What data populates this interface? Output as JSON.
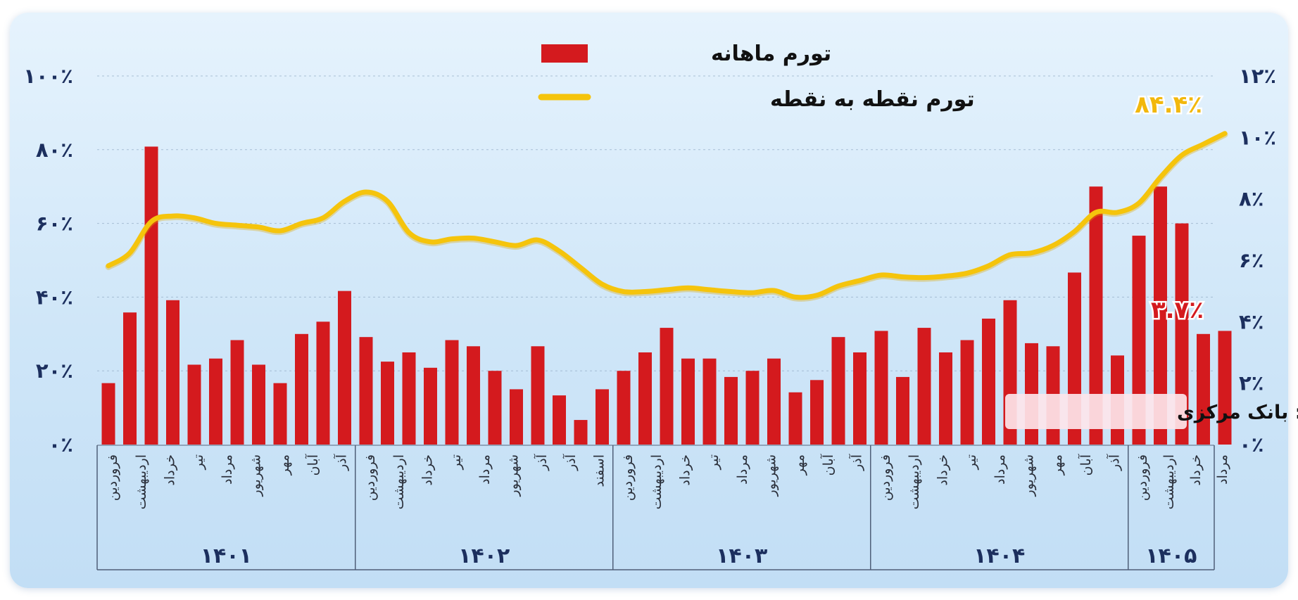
{
  "chart_data": {
    "type": "bar+line",
    "legend": {
      "placement": "top-center",
      "bar_series_name": "تورم ماهانه",
      "line_series_name": "تورم نقطه به نقطه"
    },
    "left_axis": {
      "series": "line",
      "range": [
        0,
        100
      ],
      "tick_labels": [
        "۰٪",
        "۲۰٪",
        "۴۰٪",
        "۶۰٪",
        "۸۰٪",
        "۱۰۰٪"
      ]
    },
    "right_axis": {
      "series": "bars",
      "range": [
        0,
        12
      ],
      "tick_labels": [
        "۰٪",
        "۲٪",
        "۴٪",
        "۶٪",
        "۸٪",
        "۱۰٪",
        "۱۲٪"
      ]
    },
    "grid": true,
    "years": [
      {
        "label": "۱۴۰۱",
        "months": [
          "فروردین",
          "اردیبهشت",
          "خرداد",
          "تیر",
          "مرداد",
          "شهریور",
          "مهر",
          "آبان",
          "آذر"
        ]
      },
      {
        "label": "۱۴۰۲",
        "months": [
          "فروردین",
          "اردیبهشت",
          "خرداد",
          "تیر",
          "مرداد",
          "شهریور",
          "آذر",
          "آذر",
          "اسفند"
        ]
      },
      {
        "label": "۱۴۰۳",
        "months": [
          "فروردین",
          "اردیبهشت",
          "خرداد",
          "تیر",
          "مرداد",
          "شهریور",
          "مهر",
          "آبان",
          "آذر"
        ]
      },
      {
        "label": "۱۴۰۴",
        "months": [
          "فروردین",
          "اردیبهشت",
          "خرداد",
          "تیر",
          "مرداد",
          "شهریور",
          "مهر",
          "آبان",
          "آذر"
        ]
      },
      {
        "label": "۱۴۰۵",
        "months": [
          "فروردین",
          "اردیبهشت",
          "خرداد",
          "مرداد"
        ]
      }
    ],
    "year_bar_counts": [
      12,
      12,
      12,
      12,
      5
    ],
    "monthly_inflation": [
      2.0,
      4.3,
      9.7,
      4.7,
      2.6,
      2.8,
      3.4,
      2.6,
      2.0,
      3.6,
      4.0,
      5.0,
      3.5,
      2.7,
      3.0,
      2.5,
      3.4,
      3.2,
      2.4,
      1.8,
      3.2,
      1.6,
      0.8,
      1.8,
      2.4,
      3.0,
      3.8,
      2.8,
      2.8,
      2.2,
      2.4,
      2.8,
      1.7,
      2.1,
      3.5,
      3.0,
      3.7,
      2.2,
      3.8,
      3.0,
      3.4,
      4.1,
      4.7,
      3.3,
      3.2,
      5.6,
      8.4,
      2.9,
      6.8,
      8.4,
      7.2,
      3.6,
      3.7
    ],
    "point_inflation": [
      48.5,
      52,
      60.5,
      62,
      61.5,
      60,
      59.5,
      59,
      58,
      60,
      61.5,
      66,
      68.5,
      66,
      57.5,
      55,
      55.8,
      56,
      55,
      54,
      55.5,
      52.5,
      48,
      43.5,
      41.5,
      41.5,
      42,
      42.5,
      42,
      41.5,
      41.2,
      41.8,
      40,
      40.5,
      43,
      44.5,
      46,
      45.5,
      45.3,
      45.7,
      46.5,
      48.5,
      51.5,
      52,
      54,
      57.8,
      63,
      63,
      65.5,
      72.5,
      78.5,
      81.5,
      84.4
    ],
    "annotations": {
      "last_point_inflation": "۸۴.۴٪",
      "last_monthly_inflation": "۳.۷٪"
    },
    "source": "منبع: بانک مرکزی",
    "colors": {
      "bar": "#d41a1e",
      "line": "#f5c40c",
      "point_callout": "#f2b80c",
      "monthly_callout": "#d41a1e",
      "axis_text": "#1c2f5e",
      "grid": "#9bb3cc"
    }
  }
}
